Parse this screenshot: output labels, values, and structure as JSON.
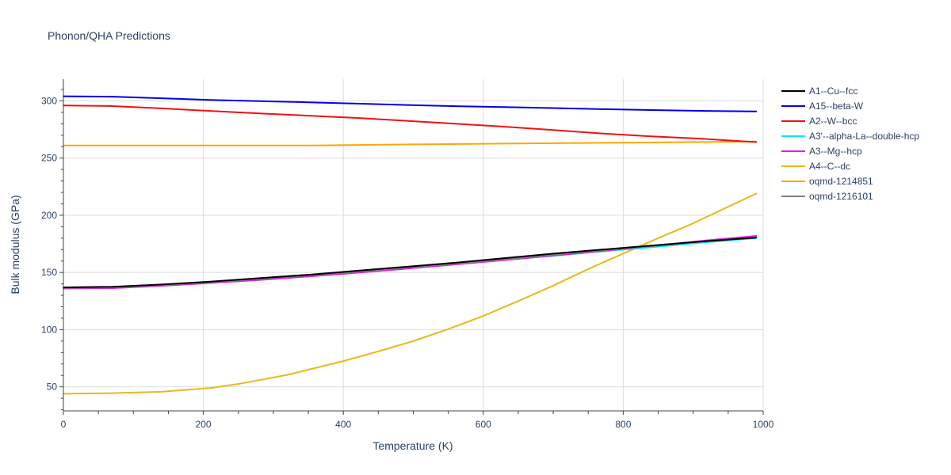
{
  "chart_data": {
    "type": "line",
    "title": "Phonon/QHA Predictions",
    "xlabel": "Temperature (K)",
    "ylabel": "Bulk modulus (GPa)",
    "xlim": [
      0,
      1000
    ],
    "ylim": [
      29,
      319
    ],
    "x_ticks": [
      0,
      200,
      400,
      600,
      800,
      1000
    ],
    "y_ticks": [
      50,
      100,
      150,
      200,
      250,
      300
    ],
    "grid": true,
    "legend_position": "right",
    "series": [
      {
        "name": "A1--Cu--fcc",
        "color": "#000000",
        "points": [
          [
            0,
            137
          ],
          [
            70,
            137.5
          ],
          [
            140,
            139.5
          ],
          [
            210,
            142
          ],
          [
            280,
            145
          ],
          [
            350,
            148
          ],
          [
            420,
            151.5
          ],
          [
            490,
            155
          ],
          [
            560,
            158.5
          ],
          [
            630,
            162.5
          ],
          [
            700,
            166.5
          ],
          [
            770,
            170
          ],
          [
            840,
            173.5
          ],
          [
            910,
            177
          ],
          [
            990,
            180.5
          ]
        ]
      },
      {
        "name": "A15--beta-W",
        "color": "#0000ee",
        "points": [
          [
            0,
            304
          ],
          [
            70,
            303.7
          ],
          [
            140,
            302.3
          ],
          [
            210,
            300.8
          ],
          [
            280,
            299.8
          ],
          [
            350,
            298.8
          ],
          [
            420,
            297.6
          ],
          [
            490,
            296.4
          ],
          [
            560,
            295.4
          ],
          [
            630,
            294.6
          ],
          [
            700,
            293.7
          ],
          [
            770,
            292.8
          ],
          [
            840,
            292
          ],
          [
            910,
            291.3
          ],
          [
            990,
            290.8
          ]
        ]
      },
      {
        "name": "A2--W--bcc",
        "color": "#ee1111",
        "points": [
          [
            0,
            296
          ],
          [
            70,
            295.5
          ],
          [
            140,
            293.5
          ],
          [
            210,
            291.2
          ],
          [
            280,
            289.1
          ],
          [
            350,
            287.1
          ],
          [
            420,
            285.1
          ],
          [
            490,
            282.6
          ],
          [
            560,
            280.1
          ],
          [
            630,
            277.5
          ],
          [
            700,
            274.5
          ],
          [
            770,
            271.5
          ],
          [
            840,
            269
          ],
          [
            910,
            267
          ],
          [
            990,
            264
          ]
        ]
      },
      {
        "name": "A3'--alpha-La--double-hcp",
        "color": "#00e5ee",
        "points": [
          [
            0,
            136
          ],
          [
            70,
            136.5
          ],
          [
            140,
            138.5
          ],
          [
            210,
            141
          ],
          [
            280,
            143.5
          ],
          [
            350,
            146.5
          ],
          [
            420,
            150
          ],
          [
            490,
            153.5
          ],
          [
            560,
            157
          ],
          [
            630,
            161
          ],
          [
            700,
            164.5
          ],
          [
            770,
            168.5
          ],
          [
            840,
            172
          ],
          [
            910,
            176
          ],
          [
            990,
            180
          ]
        ]
      },
      {
        "name": "A3--Mg--hcp",
        "color": "#e020e0",
        "points": [
          [
            0,
            136
          ],
          [
            70,
            136.3
          ],
          [
            140,
            138.3
          ],
          [
            210,
            140.8
          ],
          [
            280,
            143.5
          ],
          [
            350,
            146.5
          ],
          [
            420,
            149.8
          ],
          [
            490,
            153.3
          ],
          [
            560,
            157
          ],
          [
            630,
            160.8
          ],
          [
            700,
            164.8
          ],
          [
            770,
            168.8
          ],
          [
            840,
            173
          ],
          [
            910,
            177.5
          ],
          [
            990,
            182
          ]
        ]
      },
      {
        "name": "A4--C--dc",
        "color": "#e6b91e",
        "points": [
          [
            0,
            44
          ],
          [
            70,
            44.5
          ],
          [
            140,
            45.7
          ],
          [
            210,
            49
          ],
          [
            250,
            52.5
          ],
          [
            320,
            60.5
          ],
          [
            400,
            72.5
          ],
          [
            450,
            81
          ],
          [
            500,
            90
          ],
          [
            550,
            100.5
          ],
          [
            600,
            112
          ],
          [
            650,
            125
          ],
          [
            700,
            138.5
          ],
          [
            750,
            153
          ],
          [
            800,
            166.5
          ],
          [
            850,
            180
          ],
          [
            900,
            193
          ],
          [
            990,
            219
          ]
        ]
      },
      {
        "name": "oqmd-1214851",
        "color": "#ffa500",
        "points": [
          [
            0,
            261
          ],
          [
            100,
            261
          ],
          [
            200,
            261
          ],
          [
            300,
            261
          ],
          [
            360,
            261
          ],
          [
            420,
            261.5
          ],
          [
            500,
            262
          ],
          [
            600,
            262.5
          ],
          [
            700,
            263
          ],
          [
            800,
            263.5
          ],
          [
            900,
            264
          ],
          [
            990,
            264.5
          ]
        ]
      },
      {
        "name": "oqmd-1216101",
        "color": "#808080",
        "points": [
          [
            0,
            136.5
          ],
          [
            70,
            137
          ],
          [
            140,
            139
          ],
          [
            210,
            141.5
          ],
          [
            280,
            144.5
          ],
          [
            350,
            147.5
          ],
          [
            420,
            150.8
          ],
          [
            490,
            154.3
          ],
          [
            560,
            157.8
          ],
          [
            630,
            161.5
          ],
          [
            700,
            165.5
          ],
          [
            770,
            169.5
          ],
          [
            840,
            173
          ],
          [
            910,
            176.8
          ],
          [
            990,
            180.5
          ]
        ]
      }
    ]
  }
}
